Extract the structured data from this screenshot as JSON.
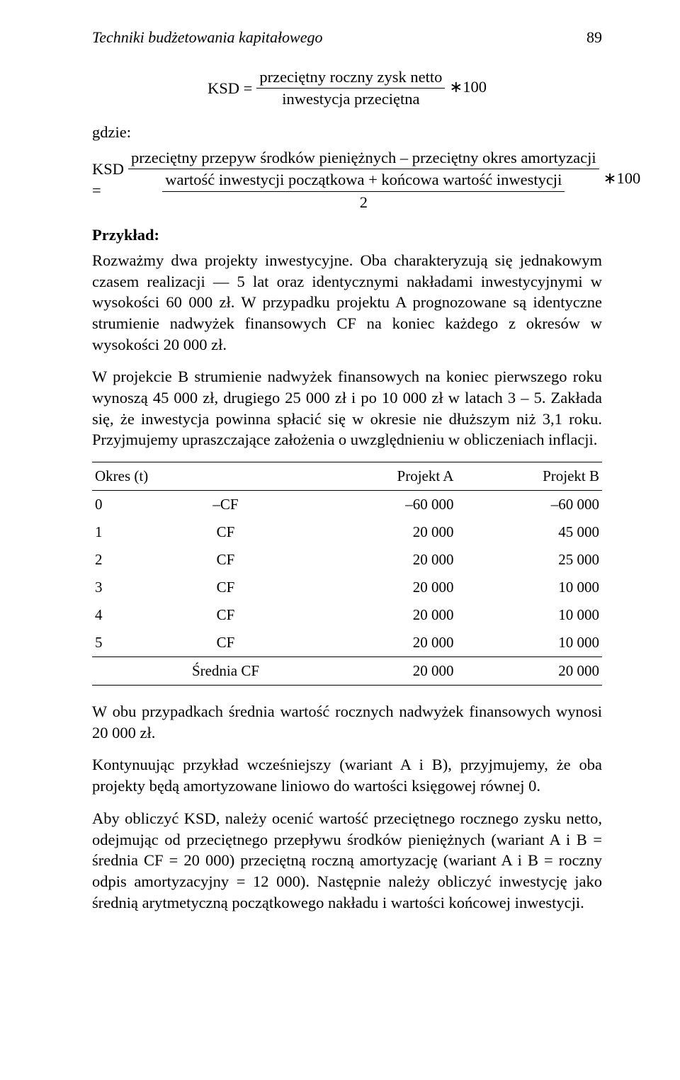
{
  "runningHead": {
    "title": "Techniki budżetowania kapitałowego",
    "pageNumber": "89"
  },
  "formula1": {
    "lhs": "KSD =",
    "numerator": "przeciętny roczny zysk netto",
    "denominator": "inwestycja przeciętna",
    "tail": "∗100"
  },
  "labels": {
    "where": "gdzie:",
    "example": "Przykład:"
  },
  "formula2": {
    "lhs": "KSD =",
    "numerator": "przeciętny przepyw środków pieniężnych – przeciętny okres amortyzacji",
    "midline": "wartość inwestycji początkowa + końcowa wartość inwestycji",
    "denominator": "2",
    "tail": "∗100"
  },
  "paragraphs": {
    "p1": "Rozważmy dwa projekty inwestycyjne. Oba charakteryzują się jednakowym czasem realizacji — 5 lat oraz identycznymi nakładami inwestycyjnymi w wysokości 60 000 zł. W przypadku projektu A prognozowane są identyczne strumienie nadwyżek finansowych CF na koniec każdego z okresów w wysokości 20 000 zł.",
    "p2": "W projekcie B strumienie nadwyżek finansowych na koniec pierwszego roku wynoszą 45 000 zł, drugiego 25 000 zł i po 10 000 zł w latach 3 – 5. Zakłada się, że inwestycja powinna spłacić się w okresie nie dłuższym niż 3,1 roku. Przyjmujemy upraszczające założenia o uwzględnieniu w obliczeniach inflacji.",
    "p3": "W obu przypadkach średnia wartość rocznych nadwyżek finansowych wynosi 20 000 zł.",
    "p4": "Kontynuując przykład wcześniejszy (wariant A i B), przyjmujemy, że oba projekty będą amortyzowane liniowo do wartości księgowej równej 0.",
    "p5": "Aby obliczyć KSD, należy ocenić wartość przeciętnego rocznego zysku netto, odejmując od przeciętnego przepływu środków pieniężnych (wariant A i B = średnia CF = 20 000) przeciętną roczną amortyzację (wariant A i B = roczny odpis amortyzacyjny = 12 000). Następnie należy obliczyć inwestycję jako średnią arytmetyczną początkowego nakładu i wartości końcowej inwestycji."
  },
  "table": {
    "headers": {
      "period": "Okres (t)",
      "projA": "Projekt A",
      "projB": "Projekt B"
    },
    "rows": [
      {
        "t": "0",
        "label": "–CF",
        "a": "–60 000",
        "b": "–60 000"
      },
      {
        "t": "1",
        "label": "CF",
        "a": "20 000",
        "b": "45 000"
      },
      {
        "t": "2",
        "label": "CF",
        "a": "20 000",
        "b": "25 000"
      },
      {
        "t": "3",
        "label": "CF",
        "a": "20 000",
        "b": "10 000"
      },
      {
        "t": "4",
        "label": "CF",
        "a": "20 000",
        "b": "10 000"
      },
      {
        "t": "5",
        "label": "CF",
        "a": "20 000",
        "b": "10 000"
      }
    ],
    "summary": {
      "label": "Średnia CF",
      "a": "20 000",
      "b": "20 000"
    }
  }
}
